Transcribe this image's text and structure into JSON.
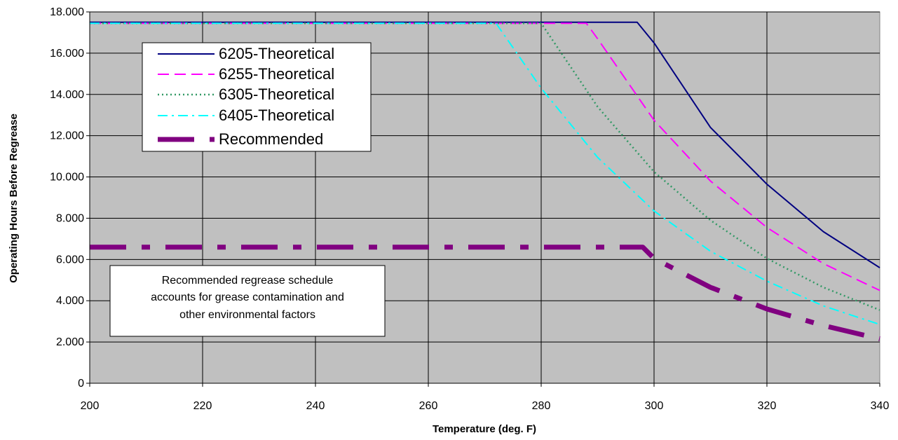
{
  "chart_data": {
    "type": "line",
    "title": "",
    "xlabel": "Temperature (deg. F)",
    "ylabel": "Operating Hours Before Regrease",
    "xlim": [
      200,
      340
    ],
    "ylim": [
      0,
      18000
    ],
    "x_ticks": [
      200,
      220,
      240,
      260,
      280,
      300,
      320,
      340
    ],
    "x_tick_labels": [
      "200",
      "220",
      "240",
      "260",
      "280",
      "300",
      "320",
      "340"
    ],
    "y_ticks": [
      0,
      2000,
      4000,
      6000,
      8000,
      10000,
      12000,
      14000,
      16000,
      18000
    ],
    "y_tick_labels": [
      "0",
      "2.000",
      "4.000",
      "6.000",
      "8.000",
      "10.000",
      "12.000",
      "14.000",
      "16.000",
      "18.000"
    ],
    "grid": true,
    "legend_position": "top-left",
    "plot_background": "#c0c0c0",
    "series": [
      {
        "name": "6205-Theoretical",
        "color": "#000080",
        "style": "solid",
        "points": [
          [
            200,
            17500
          ],
          [
            297,
            17500
          ],
          [
            300,
            16500
          ],
          [
            310,
            12400
          ],
          [
            320,
            9650
          ],
          [
            330,
            7350
          ],
          [
            340,
            5600
          ]
        ]
      },
      {
        "name": "6255-Theoretical",
        "color": "#ff00ff",
        "style": "dashed",
        "points": [
          [
            200,
            17450
          ],
          [
            288,
            17450
          ],
          [
            290,
            16700
          ],
          [
            300,
            12750
          ],
          [
            310,
            9800
          ],
          [
            320,
            7550
          ],
          [
            330,
            5800
          ],
          [
            340,
            4500
          ]
        ]
      },
      {
        "name": "6305-Theoretical",
        "color": "#339966",
        "style": "dotted",
        "points": [
          [
            200,
            17450
          ],
          [
            280,
            17450
          ],
          [
            290,
            13400
          ],
          [
            300,
            10250
          ],
          [
            310,
            7900
          ],
          [
            320,
            6050
          ],
          [
            330,
            4650
          ],
          [
            340,
            3550
          ]
        ]
      },
      {
        "name": "6405-Theoretical",
        "color": "#00ffff",
        "style": "dashdot",
        "points": [
          [
            200,
            17450
          ],
          [
            272,
            17450
          ],
          [
            280,
            14300
          ],
          [
            290,
            10950
          ],
          [
            300,
            8350
          ],
          [
            310,
            6400
          ],
          [
            320,
            4950
          ],
          [
            330,
            3750
          ],
          [
            340,
            2850
          ]
        ]
      },
      {
        "name": "Recommended",
        "color": "#800080",
        "style": "dashthick",
        "points": [
          [
            200,
            6600
          ],
          [
            298,
            6600
          ],
          [
            300,
            6050
          ],
          [
            310,
            4650
          ],
          [
            320,
            3600
          ],
          [
            330,
            2800
          ],
          [
            340,
            2150
          ]
        ]
      }
    ],
    "annotation": {
      "lines": [
        "Recommended regrease schedule",
        "accounts for grease contamination and",
        "other environmental factors"
      ]
    }
  }
}
